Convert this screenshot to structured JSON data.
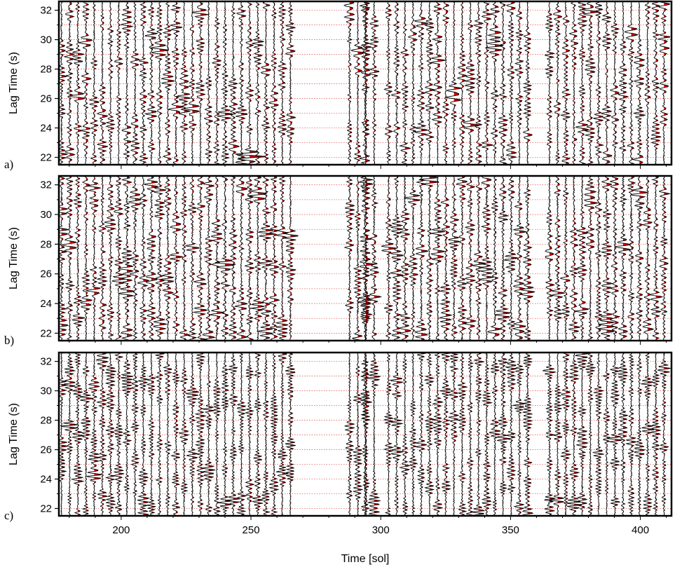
{
  "chart_data": [
    {
      "type": "line",
      "panel_label": "a)",
      "ylabel": "Lag Time (s)",
      "xlabel": "",
      "xlim": [
        176,
        412
      ],
      "ylim": [
        21.5,
        32.6
      ],
      "yticks": [
        22,
        24,
        26,
        28,
        30,
        32
      ],
      "grid": true,
      "trace_sols": {
        "segments": [
          [
            177,
            266
          ],
          [
            288,
            300
          ],
          [
            303,
            357
          ],
          [
            365,
            411
          ]
        ],
        "step": 3.15,
        "extra": [
          294
        ]
      },
      "positive_fill_color": "#cc0000",
      "trace_color": "#000000",
      "gridline_color": "#e06060"
    },
    {
      "type": "line",
      "panel_label": "b)",
      "ylabel": "Lag Time (s)",
      "xlabel": "",
      "xlim": [
        176,
        412
      ],
      "ylim": [
        21.5,
        32.6
      ],
      "yticks": [
        22,
        24,
        26,
        28,
        30,
        32
      ],
      "grid": true,
      "trace_sols": {
        "segments": [
          [
            177,
            266
          ],
          [
            288,
            300
          ],
          [
            303,
            357
          ],
          [
            365,
            411
          ]
        ],
        "step": 3.15,
        "extra": [
          294
        ]
      },
      "positive_fill_color": "#cc0000",
      "trace_color": "#000000",
      "gridline_color": "#e06060"
    },
    {
      "type": "line",
      "panel_label": "c)",
      "ylabel": "Lag Time (s)",
      "xlabel": "Time [sol]",
      "xlim": [
        176,
        412
      ],
      "ylim": [
        21.5,
        32.6
      ],
      "yticks": [
        22,
        24,
        26,
        28,
        30,
        32
      ],
      "xticks": [
        200,
        250,
        300,
        350,
        400
      ],
      "grid": true,
      "trace_sols": {
        "segments": [
          [
            177,
            266
          ],
          [
            288,
            300
          ],
          [
            303,
            357
          ],
          [
            365,
            411
          ]
        ],
        "step": 3.15,
        "extra": [
          294
        ]
      },
      "positive_fill_color": "#cc0000",
      "trace_color": "#000000",
      "gridline_color": "#e06060"
    }
  ]
}
